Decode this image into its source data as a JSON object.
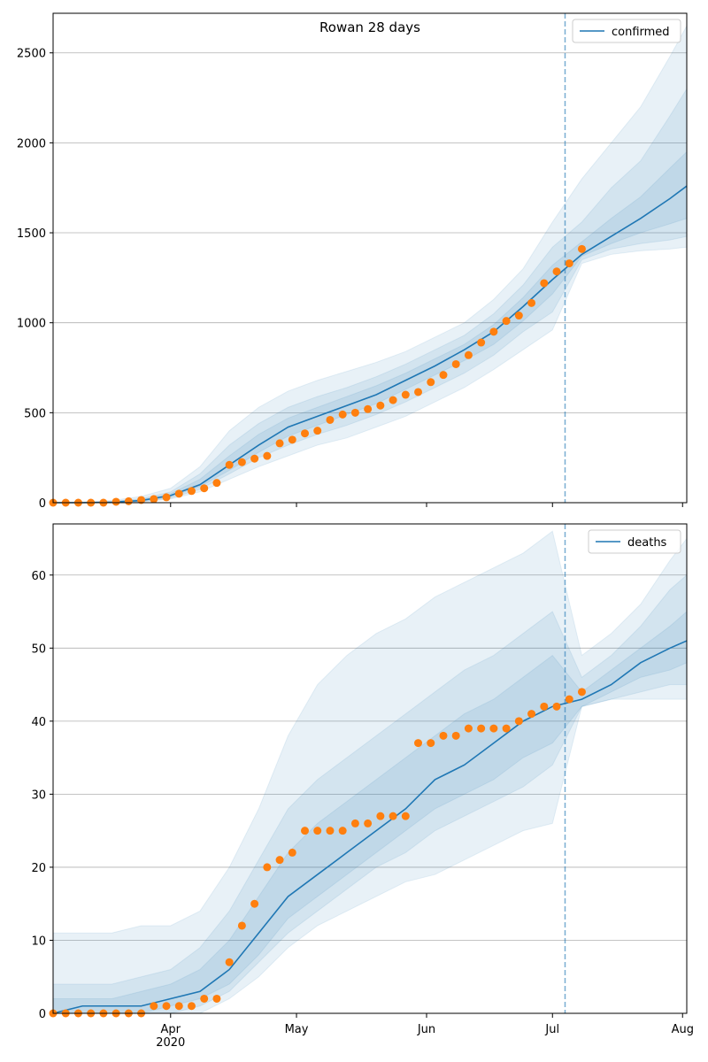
{
  "chart_data": [
    {
      "type": "line",
      "title": "Rowan 28 days",
      "x": [
        "2020-03-04",
        "2020-03-11",
        "2020-03-18",
        "2020-03-25",
        "2020-04-01",
        "2020-04-08",
        "2020-04-15",
        "2020-04-22",
        "2020-04-29",
        "2020-05-06",
        "2020-05-13",
        "2020-05-20",
        "2020-05-27",
        "2020-06-03",
        "2020-06-10",
        "2020-06-17",
        "2020-06-24",
        "2020-07-01",
        "2020-07-08",
        "2020-07-15",
        "2020-07-22",
        "2020-07-29",
        "2020-08-02"
      ],
      "series": [
        {
          "name": "confirmed",
          "color": "#1f77b4",
          "values": [
            0,
            0,
            3,
            12,
            40,
            100,
            210,
            320,
            420,
            480,
            540,
            600,
            680,
            760,
            850,
            950,
            1090,
            1240,
            1380,
            1480,
            1580,
            1690,
            1760
          ]
        }
      ],
      "bands": [
        {
          "lower": [
            0,
            0,
            0,
            3,
            20,
            60,
            130,
            200,
            260,
            320,
            360,
            420,
            480,
            560,
            640,
            740,
            850,
            960,
            1330,
            1380,
            1400,
            1410,
            1420
          ],
          "upper": [
            2,
            4,
            12,
            35,
            80,
            200,
            400,
            530,
            620,
            680,
            730,
            780,
            840,
            920,
            1000,
            1130,
            1300,
            1560,
            1800,
            2000,
            2200,
            2480,
            2650
          ]
        },
        {
          "lower": [
            0,
            0,
            1,
            6,
            25,
            75,
            160,
            250,
            320,
            380,
            430,
            490,
            560,
            640,
            720,
            820,
            950,
            1060,
            1350,
            1410,
            1440,
            1460,
            1480
          ],
          "upper": [
            1,
            2,
            7,
            22,
            60,
            160,
            320,
            440,
            530,
            590,
            640,
            700,
            770,
            850,
            930,
            1050,
            1210,
            1420,
            1560,
            1750,
            1900,
            2150,
            2300
          ]
        },
        {
          "lower": [
            0,
            0,
            2,
            8,
            32,
            90,
            180,
            280,
            370,
            430,
            490,
            550,
            630,
            710,
            790,
            880,
            1010,
            1160,
            1370,
            1440,
            1500,
            1550,
            1580
          ],
          "upper": [
            0,
            1,
            5,
            17,
            50,
            130,
            260,
            380,
            470,
            530,
            590,
            650,
            720,
            800,
            880,
            990,
            1140,
            1320,
            1450,
            1580,
            1700,
            1860,
            1950
          ]
        }
      ],
      "band_color": "#1f77b4",
      "observed": {
        "color": "#ff7f0e",
        "x": [
          "2020-03-04",
          "2020-03-07",
          "2020-03-10",
          "2020-03-13",
          "2020-03-16",
          "2020-03-19",
          "2020-03-22",
          "2020-03-25",
          "2020-03-28",
          "2020-03-31",
          "2020-04-03",
          "2020-04-06",
          "2020-04-09",
          "2020-04-12",
          "2020-04-15",
          "2020-04-18",
          "2020-04-21",
          "2020-04-24",
          "2020-04-27",
          "2020-04-30",
          "2020-05-03",
          "2020-05-06",
          "2020-05-09",
          "2020-05-12",
          "2020-05-15",
          "2020-05-18",
          "2020-05-21",
          "2020-05-24",
          "2020-05-27",
          "2020-05-30",
          "2020-06-02",
          "2020-06-05",
          "2020-06-08",
          "2020-06-11",
          "2020-06-14",
          "2020-06-17",
          "2020-06-20",
          "2020-06-23",
          "2020-06-26",
          "2020-06-29",
          "2020-07-02",
          "2020-07-05",
          "2020-07-08"
        ],
        "values": [
          0,
          0,
          0,
          0,
          0,
          5,
          8,
          15,
          20,
          30,
          50,
          65,
          80,
          110,
          210,
          225,
          245,
          260,
          330,
          350,
          385,
          400,
          460,
          490,
          500,
          520,
          540,
          570,
          600,
          615,
          670,
          710,
          770,
          820,
          890,
          950,
          1010,
          1040,
          1110,
          1220,
          1285,
          1330,
          1410
        ]
      },
      "vline": "2020-07-04",
      "xlim": [
        "2020-03-04",
        "2020-08-02"
      ],
      "xticks": [
        "2020-04-01",
        "2020-05-01",
        "2020-06-01",
        "2020-07-01",
        "2020-08-01"
      ],
      "ylim": [
        0,
        2720
      ],
      "yticks": [
        0,
        500,
        1000,
        1500,
        2000,
        2500
      ],
      "grid": true,
      "legend": "upper right"
    },
    {
      "type": "line",
      "x": [
        "2020-03-04",
        "2020-03-11",
        "2020-03-18",
        "2020-03-25",
        "2020-04-01",
        "2020-04-08",
        "2020-04-15",
        "2020-04-22",
        "2020-04-29",
        "2020-05-06",
        "2020-05-13",
        "2020-05-20",
        "2020-05-27",
        "2020-06-03",
        "2020-06-10",
        "2020-06-17",
        "2020-06-24",
        "2020-07-01",
        "2020-07-08",
        "2020-07-15",
        "2020-07-22",
        "2020-07-29",
        "2020-08-02"
      ],
      "series": [
        {
          "name": "deaths",
          "color": "#1f77b4",
          "values": [
            0,
            1,
            1,
            1,
            2,
            3,
            6,
            11,
            16,
            19,
            22,
            25,
            28,
            32,
            34,
            37,
            40,
            42,
            43,
            45,
            48,
            50,
            51
          ]
        }
      ],
      "bands": [
        {
          "lower": [
            0,
            0,
            0,
            0,
            0,
            0,
            2,
            5,
            9,
            12,
            14,
            16,
            18,
            19,
            21,
            23,
            25,
            26,
            42,
            43,
            43,
            43,
            43
          ],
          "upper": [
            11,
            11,
            11,
            12,
            12,
            14,
            20,
            28,
            38,
            45,
            49,
            52,
            54,
            57,
            59,
            61,
            63,
            66,
            49,
            52,
            56,
            62,
            65
          ]
        },
        {
          "lower": [
            0,
            0,
            0,
            0,
            0,
            1,
            3,
            7,
            11,
            14,
            17,
            20,
            22,
            25,
            27,
            29,
            31,
            34,
            42,
            43,
            44,
            45,
            45
          ],
          "upper": [
            4,
            4,
            4,
            5,
            6,
            9,
            14,
            21,
            28,
            32,
            35,
            38,
            41,
            44,
            47,
            49,
            52,
            55,
            46,
            49,
            53,
            58,
            60
          ]
        },
        {
          "lower": [
            0,
            0,
            0,
            0,
            1,
            2,
            4,
            8,
            13,
            16,
            19,
            22,
            25,
            28,
            30,
            32,
            35,
            37,
            42,
            44,
            46,
            47,
            48
          ],
          "upper": [
            2,
            2,
            2,
            3,
            4,
            6,
            10,
            16,
            22,
            26,
            29,
            32,
            35,
            38,
            41,
            43,
            46,
            49,
            44,
            47,
            50,
            53,
            55
          ]
        }
      ],
      "band_color": "#1f77b4",
      "observed": {
        "color": "#ff7f0e",
        "x": [
          "2020-03-04",
          "2020-03-07",
          "2020-03-10",
          "2020-03-13",
          "2020-03-16",
          "2020-03-19",
          "2020-03-22",
          "2020-03-25",
          "2020-03-28",
          "2020-03-31",
          "2020-04-03",
          "2020-04-06",
          "2020-04-09",
          "2020-04-12",
          "2020-04-15",
          "2020-04-18",
          "2020-04-21",
          "2020-04-24",
          "2020-04-27",
          "2020-04-30",
          "2020-05-03",
          "2020-05-06",
          "2020-05-09",
          "2020-05-12",
          "2020-05-15",
          "2020-05-18",
          "2020-05-21",
          "2020-05-24",
          "2020-05-27",
          "2020-05-30",
          "2020-06-02",
          "2020-06-05",
          "2020-06-08",
          "2020-06-11",
          "2020-06-14",
          "2020-06-17",
          "2020-06-20",
          "2020-06-23",
          "2020-06-26",
          "2020-06-29",
          "2020-07-02",
          "2020-07-05",
          "2020-07-08"
        ],
        "values": [
          0,
          0,
          0,
          0,
          0,
          0,
          0,
          0,
          1,
          1,
          1,
          1,
          2,
          2,
          7,
          12,
          15,
          20,
          21,
          22,
          25,
          25,
          25,
          25,
          26,
          26,
          27,
          27,
          27,
          37,
          37,
          38,
          38,
          39,
          39,
          39,
          39,
          40,
          41,
          42,
          42,
          43,
          44
        ]
      },
      "vline": "2020-07-04",
      "xlim": [
        "2020-03-04",
        "2020-08-02"
      ],
      "xticks": [
        {
          "value": "2020-04-01",
          "label": "Apr 2020"
        },
        {
          "value": "2020-05-01",
          "label": "May"
        },
        {
          "value": "2020-06-01",
          "label": "Jun"
        },
        {
          "value": "2020-07-01",
          "label": "Jul"
        },
        {
          "value": "2020-08-01",
          "label": "Aug"
        }
      ],
      "ylim": [
        0,
        67
      ],
      "yticks": [
        0,
        10,
        20,
        30,
        40,
        50,
        60
      ],
      "grid": true,
      "legend": "upper right"
    }
  ]
}
